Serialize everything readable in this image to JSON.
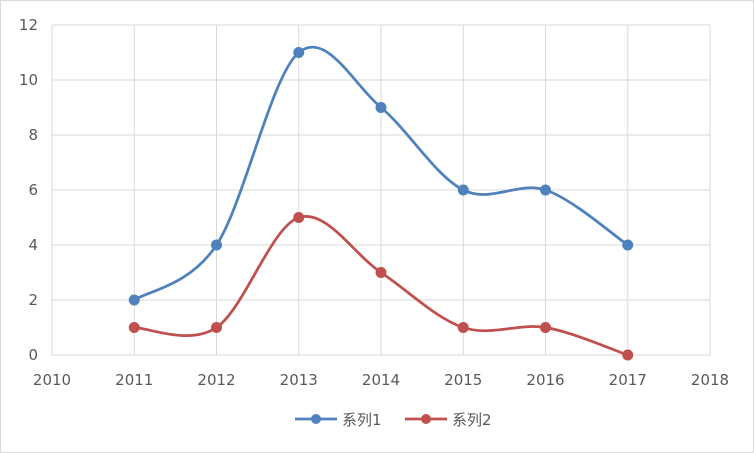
{
  "chart_data": {
    "type": "scatter",
    "title": "",
    "xlabel": "",
    "ylabel": "",
    "xlim": [
      2010,
      2018
    ],
    "ylim": [
      0,
      12
    ],
    "x_ticks": [
      "2010",
      "2011",
      "2012",
      "2013",
      "2014",
      "2015",
      "2016",
      "2017",
      "2018"
    ],
    "y_ticks": [
      "0",
      "2",
      "4",
      "6",
      "8",
      "10",
      "12"
    ],
    "grid": true,
    "smooth_lines": true,
    "legend_position": "bottom",
    "x": [
      2011,
      2012,
      2013,
      2014,
      2015,
      2016,
      2017
    ],
    "series": [
      {
        "name": "系列1",
        "color": "#4f81bd",
        "values": [
          2,
          4,
          11,
          9,
          6,
          6,
          4
        ]
      },
      {
        "name": "系列2",
        "color": "#c0504d",
        "values": [
          1,
          1,
          5,
          3,
          1,
          1,
          0
        ]
      }
    ]
  }
}
